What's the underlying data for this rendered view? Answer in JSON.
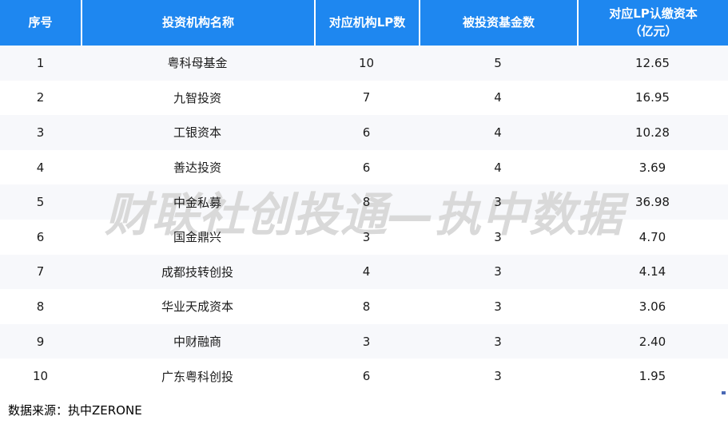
{
  "chart_data": {
    "type": "table",
    "columns": [
      "序号",
      "投资机构名称",
      "对应机构LP数",
      "被投资基金数",
      "对应LP认缴资本\n（亿元）"
    ],
    "rows": [
      [
        "1",
        "粤科母基金",
        "10",
        "5",
        "12.65"
      ],
      [
        "2",
        "九智投资",
        "7",
        "4",
        "16.95"
      ],
      [
        "3",
        "工银资本",
        "6",
        "4",
        "10.28"
      ],
      [
        "4",
        "善达投资",
        "6",
        "4",
        "3.69"
      ],
      [
        "5",
        "中金私募",
        "8",
        "3",
        "36.98"
      ],
      [
        "6",
        "国金鼎兴",
        "3",
        "3",
        "4.70"
      ],
      [
        "7",
        "成都技转创投",
        "4",
        "3",
        "4.14"
      ],
      [
        "8",
        "华业天成资本",
        "8",
        "3",
        "3.06"
      ],
      [
        "9",
        "中财融商",
        "3",
        "3",
        "2.40"
      ],
      [
        "10",
        "广东粤科创投",
        "6",
        "3",
        "1.95"
      ]
    ],
    "layout_hints": {
      "header_style": "solid blue with white bold text and white column separators",
      "row_striping": "odd data rows light gray-blue, even rows white",
      "alignment": "all cells centered"
    }
  },
  "watermark": {
    "text": "财联社创投通—执中数据"
  },
  "footer": {
    "source_label": "数据来源：执中ZERONE"
  },
  "colors": {
    "header_bg": "#1e87f0",
    "alt_row_bg": "#f7f8fb",
    "watermark": "#d9d9d9",
    "artifact_blue": "#4a69b5",
    "body_text": "#1b1b1b",
    "header_text": "#ffffff"
  }
}
